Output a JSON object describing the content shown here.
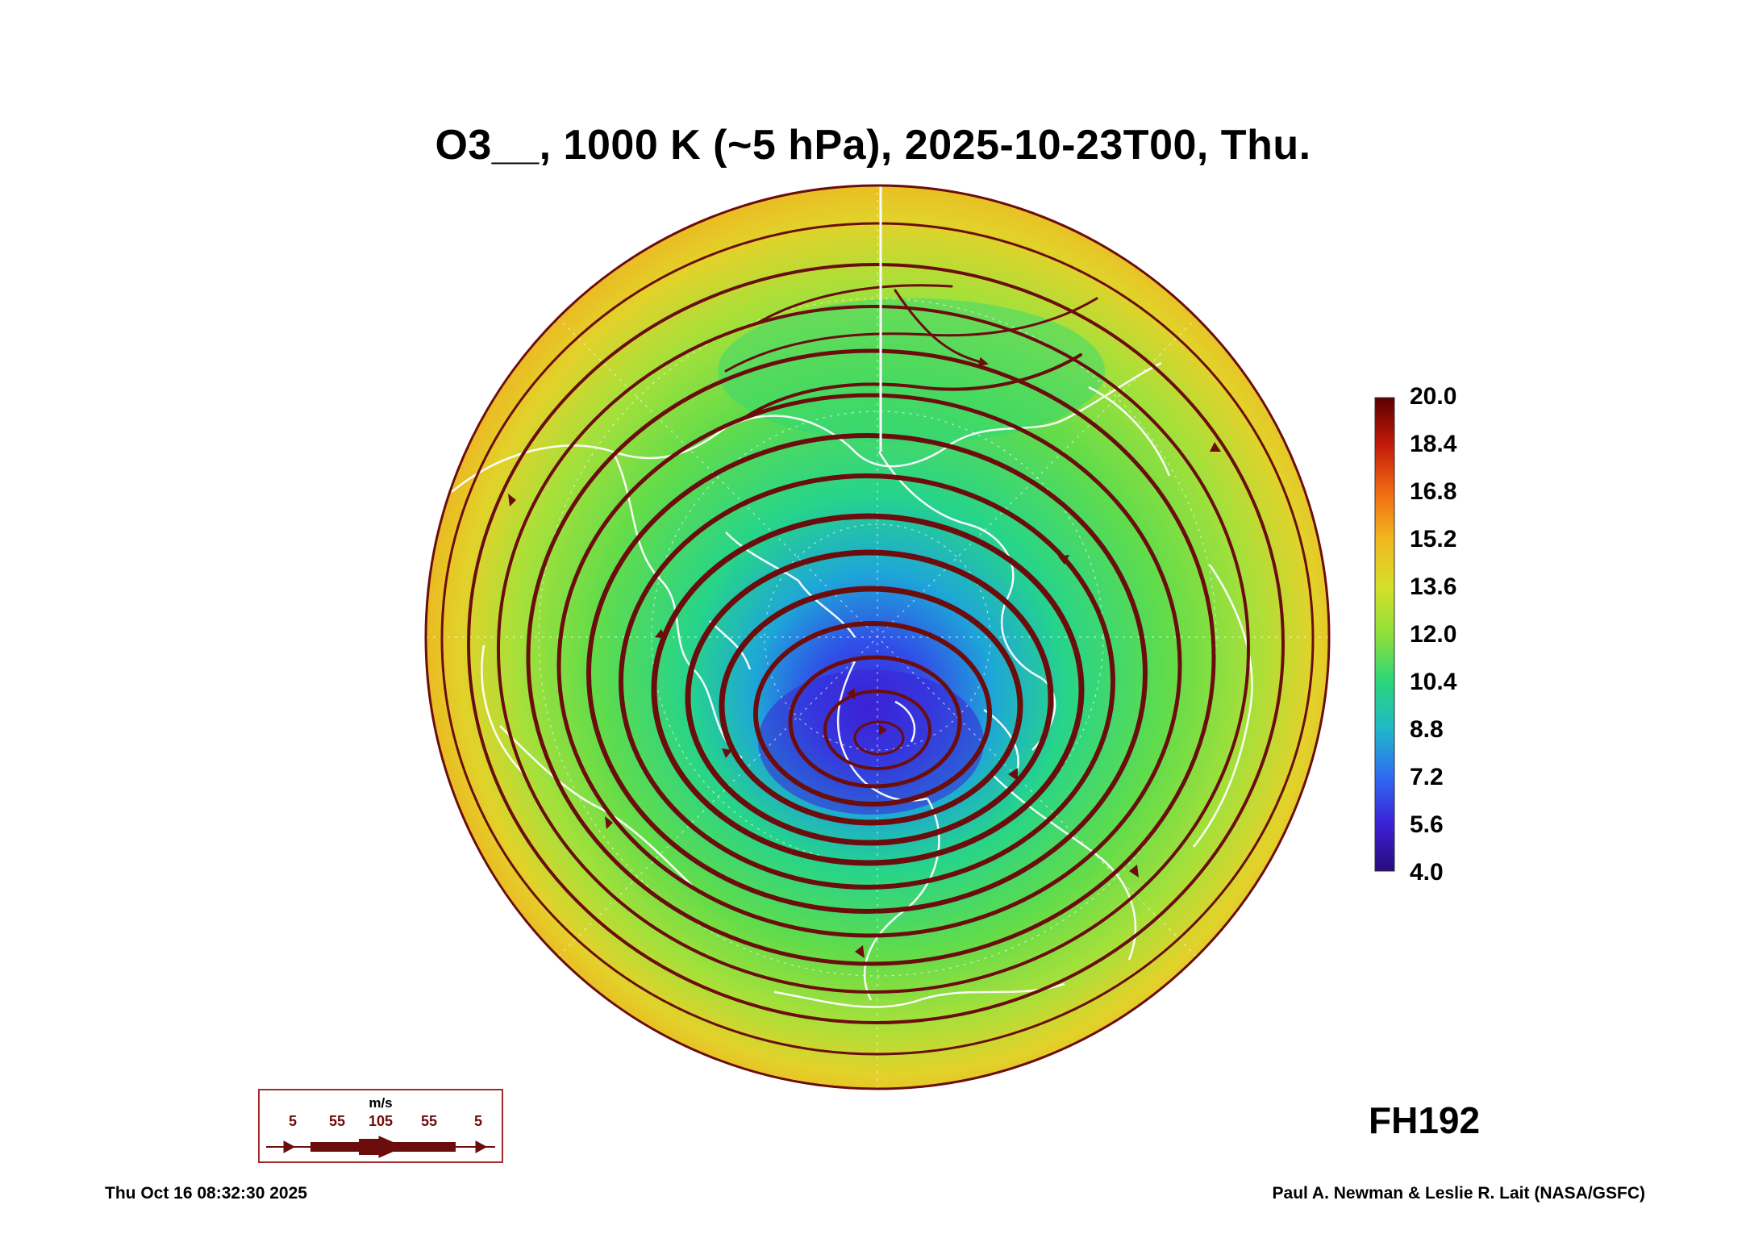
{
  "title": "O3__, 1000 K (~5 hPa), 2025-10-23T00, Thu.",
  "colorbar": {
    "labels": [
      "20.0",
      "18.4",
      "16.8",
      "15.2",
      "13.6",
      "12.0",
      "10.4",
      "8.8",
      "7.2",
      "5.6",
      "4.0"
    ],
    "min": 4.0,
    "max": 20.0,
    "colors": [
      "#2a0a7a",
      "#3b22d6",
      "#2f6cf2",
      "#1fb8c9",
      "#2ad67a",
      "#8fe03a",
      "#d4e02a",
      "#f2b81f",
      "#f06b12",
      "#c41a0a",
      "#5a0000"
    ]
  },
  "forecast_hour": "FH192",
  "wind_legend": {
    "unit": "m/s",
    "ticks": [
      "5",
      "55",
      "105",
      "55",
      "5"
    ],
    "color": "#6b0d0d"
  },
  "footer": {
    "timestamp": "Thu Oct 16 08:32:30 2025",
    "credit": "Paul A. Newman & Leslie R. Lait (NASA/GSFC)"
  },
  "colors": {
    "streamline": "#6b0d0d",
    "coastline": "#ffffff",
    "vortex_low": "#3b22d6",
    "field_mid": "#2ad67a",
    "field_high": "#f2b81f"
  }
}
